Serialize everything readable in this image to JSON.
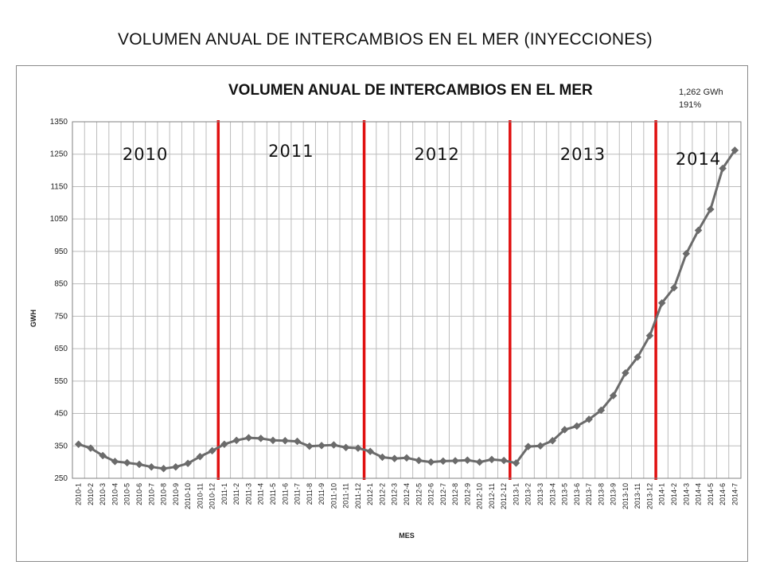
{
  "slide": {
    "title": "VOLUMEN ANUAL DE INTERCAMBIOS EN EL MER (INYECCIONES)"
  },
  "colors": {
    "series": "#6b6b6b",
    "divider": "#e01010",
    "grid": "#bcbcbc"
  },
  "chart_data": {
    "type": "line",
    "title": "VOLUMEN ANUAL DE INTERCAMBIOS EN EL MER",
    "xlabel": "MES",
    "ylabel": "GWH",
    "ylim": [
      250,
      1350
    ],
    "yticks": [
      250,
      350,
      450,
      550,
      650,
      750,
      850,
      950,
      1050,
      1150,
      1250,
      1350
    ],
    "grid": true,
    "legend": "none",
    "marker": "diamond",
    "categories": [
      "2010-1",
      "2010-2",
      "2010-3",
      "2010-4",
      "2010-5",
      "2010-6",
      "2010-7",
      "2010-8",
      "2010-9",
      "2010-10",
      "2010-11",
      "2010-12",
      "2011-1",
      "2011-2",
      "2011-3",
      "2011-4",
      "2011-5",
      "2011-6",
      "2011-7",
      "2011-8",
      "2011-9",
      "2011-10",
      "2011-11",
      "2011-12",
      "2012-1",
      "2012-2",
      "2012-3",
      "2012-4",
      "2012-5",
      "2012-6",
      "2012-7",
      "2012-8",
      "2012-9",
      "2012-10",
      "2012-11",
      "2012-12",
      "2013-1",
      "2013-2",
      "2013-3",
      "2013-4",
      "2013-5",
      "2013-6",
      "2013-7",
      "2013-8",
      "2013-9",
      "2013-10",
      "2013-11",
      "2013-12",
      "2014-1",
      "2014-2",
      "2014-3",
      "2014-4",
      "2014-5",
      "2014-6",
      "2014-7"
    ],
    "values": [
      355,
      343,
      320,
      302,
      298,
      293,
      285,
      280,
      285,
      296,
      317,
      335,
      355,
      367,
      375,
      373,
      367,
      366,
      364,
      349,
      351,
      353,
      345,
      343,
      333,
      315,
      311,
      313,
      305,
      300,
      303,
      304,
      306,
      300,
      308,
      305,
      297,
      348,
      350,
      366,
      400,
      411,
      432,
      460,
      505,
      575,
      624,
      690,
      791,
      838,
      943,
      1015,
      1080,
      1206,
      1262
    ],
    "year_dividers_after": [
      "2010-12",
      "2011-12",
      "2012-12",
      "2013-12"
    ],
    "year_labels": [
      "2010",
      "2011",
      "2012",
      "2013",
      "2014"
    ],
    "annotations": [
      "1,262 GWh",
      "191%"
    ]
  }
}
